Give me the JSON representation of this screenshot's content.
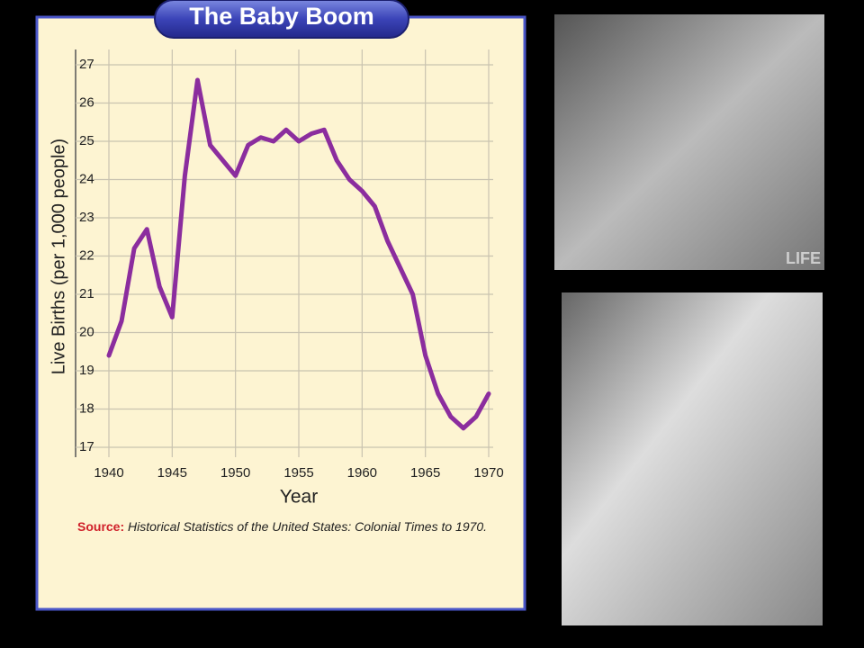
{
  "chart_data": {
    "type": "line",
    "title": "The Baby Boom",
    "x": [
      1940,
      1941,
      1942,
      1943,
      1944,
      1945,
      1946,
      1947,
      1948,
      1949,
      1950,
      1951,
      1952,
      1953,
      1954,
      1955,
      1956,
      1957,
      1958,
      1959,
      1960,
      1961,
      1962,
      1963,
      1964,
      1965,
      1966,
      1967,
      1968,
      1969,
      1970
    ],
    "series": [
      {
        "color": "#8b2d9e",
        "values": [
          19.4,
          20.3,
          22.2,
          22.7,
          21.2,
          20.4,
          24.1,
          26.6,
          24.9,
          24.5,
          24.1,
          24.9,
          25.1,
          25.0,
          25.3,
          25.0,
          25.2,
          25.3,
          24.5,
          24.0,
          23.7,
          23.3,
          22.4,
          21.7,
          21.0,
          19.4,
          18.4,
          17.8,
          17.5,
          17.8,
          18.4
        ]
      }
    ],
    "xlabel": "Year",
    "ylabel": "Live Births (per 1,000 people)",
    "xlim": [
      1940,
      1970
    ],
    "xticks": [
      1940,
      1945,
      1950,
      1955,
      1960,
      1965,
      1970
    ],
    "ylim": [
      17,
      27
    ],
    "yticks": [
      17,
      18,
      19,
      20,
      21,
      22,
      23,
      24,
      25,
      26,
      27
    ],
    "grid": true,
    "source_label": "Source:",
    "source_text": "Historical Statistics of the United States: Colonial Times to 1970."
  },
  "photo_watermark": "LIFE"
}
